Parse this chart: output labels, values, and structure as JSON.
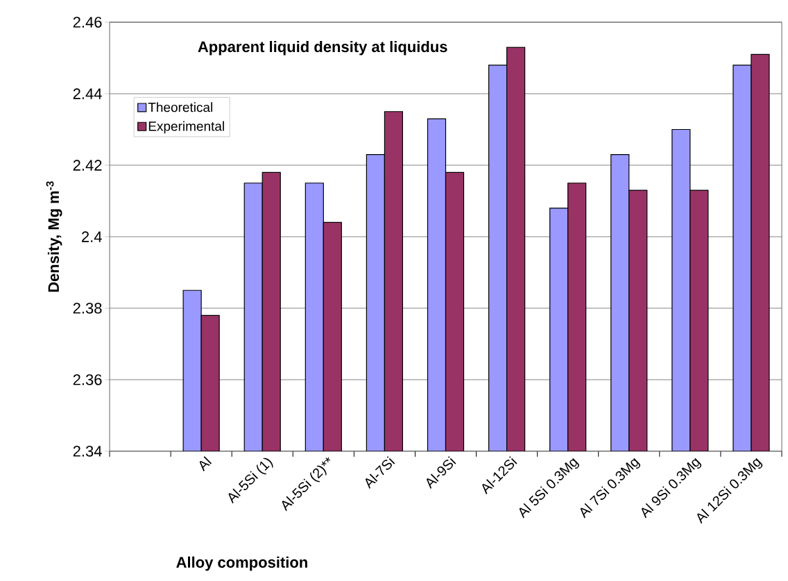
{
  "chart_data": {
    "type": "bar",
    "title": "Apparent liquid density at liquidus",
    "xlabel": "Alloy composition",
    "ylabel": "Density, Mg m$^{-3}$",
    "categories": [
      null,
      "Al",
      "Al-5Si (1)",
      "Al-5Si (2)**",
      "Al-7Si",
      "Al-9Si",
      "Al-12Si",
      "Al 5Si 0.3Mg",
      "Al 7Si 0.3Mg",
      "Al 9Si 0.3Mg",
      "Al 12Si 0.3Mg"
    ],
    "series": [
      {
        "name": "Theoretical",
        "color": "#9999ff",
        "values": [
          null,
          2.385,
          2.415,
          2.415,
          2.423,
          2.433,
          2.448,
          2.408,
          2.423,
          2.43,
          2.448
        ]
      },
      {
        "name": "Experimental",
        "color": "#993366",
        "values": [
          null,
          2.378,
          2.418,
          2.404,
          2.435,
          2.418,
          2.453,
          2.415,
          2.413,
          2.413,
          2.451
        ]
      }
    ],
    "ylim": [
      2.34,
      2.46
    ],
    "yticks": [
      2.34,
      2.36,
      2.38,
      2.4,
      2.42,
      2.44,
      2.46
    ],
    "grid": "y",
    "legend": "top left"
  }
}
